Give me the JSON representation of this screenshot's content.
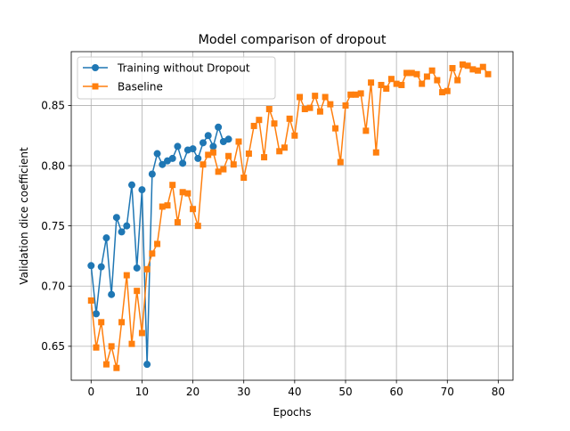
{
  "chart_data": {
    "type": "line",
    "title": "Model comparison of dropout",
    "xlabel": "Epochs",
    "ylabel": "Validation dice coefficient",
    "xlim": [
      -3.9,
      82.9
    ],
    "ylim": [
      0.6218,
      0.8947
    ],
    "xticks": [
      0,
      10,
      20,
      30,
      40,
      50,
      60,
      70,
      80
    ],
    "xtick_labels": [
      "0",
      "10",
      "20",
      "30",
      "40",
      "50",
      "60",
      "70",
      "80"
    ],
    "yticks": [
      0.65,
      0.7,
      0.75,
      0.8,
      0.85
    ],
    "ytick_labels": [
      "0.65",
      "0.70",
      "0.75",
      "0.80",
      "0.85"
    ],
    "grid": true,
    "legend_position": "upper-left",
    "series": [
      {
        "name": "Training without Dropout",
        "color": "#1f77b4",
        "marker": "circle",
        "x": [
          0,
          1,
          2,
          3,
          4,
          5,
          6,
          7,
          8,
          9,
          10,
          11,
          12,
          13,
          14,
          15,
          16,
          17,
          18,
          19,
          20,
          21,
          22,
          23,
          24,
          25,
          26,
          27
        ],
        "y": [
          0.717,
          0.677,
          0.716,
          0.74,
          0.693,
          0.757,
          0.745,
          0.75,
          0.784,
          0.715,
          0.78,
          0.635,
          0.793,
          0.81,
          0.801,
          0.804,
          0.806,
          0.816,
          0.802,
          0.813,
          0.814,
          0.806,
          0.819,
          0.825,
          0.816,
          0.832,
          0.82,
          0.822
        ]
      },
      {
        "name": "Baseline",
        "color": "#ff7f0e",
        "marker": "square",
        "x": [
          0,
          1,
          2,
          3,
          4,
          5,
          6,
          7,
          8,
          9,
          10,
          11,
          12,
          13,
          14,
          15,
          16,
          17,
          18,
          19,
          20,
          21,
          22,
          23,
          24,
          25,
          26,
          27,
          28,
          29,
          30,
          31,
          32,
          33,
          34,
          35,
          36,
          37,
          38,
          39,
          40,
          41,
          42,
          43,
          44,
          45,
          46,
          47,
          48,
          49,
          50,
          51,
          52,
          53,
          54,
          55,
          56,
          57,
          58,
          59,
          60,
          61,
          62,
          63,
          64,
          65,
          66,
          67,
          68,
          69,
          70,
          71,
          72,
          73,
          74,
          75,
          76,
          77,
          78
        ],
        "y": [
          0.688,
          0.649,
          0.67,
          0.635,
          0.65,
          0.632,
          0.67,
          0.709,
          0.652,
          0.696,
          0.661,
          0.714,
          0.727,
          0.735,
          0.766,
          0.767,
          0.784,
          0.753,
          0.778,
          0.777,
          0.764,
          0.75,
          0.801,
          0.809,
          0.811,
          0.795,
          0.797,
          0.808,
          0.801,
          0.82,
          0.79,
          0.81,
          0.833,
          0.838,
          0.807,
          0.847,
          0.835,
          0.812,
          0.815,
          0.839,
          0.825,
          0.857,
          0.847,
          0.848,
          0.858,
          0.845,
          0.857,
          0.851,
          0.831,
          0.803,
          0.85,
          0.859,
          0.859,
          0.86,
          0.829,
          0.869,
          0.811,
          0.867,
          0.864,
          0.872,
          0.868,
          0.867,
          0.877,
          0.877,
          0.876,
          0.868,
          0.874,
          0.879,
          0.871,
          0.861,
          0.862,
          0.881,
          0.871,
          0.884,
          0.883,
          0.88,
          0.879,
          0.882,
          0.876
        ]
      }
    ]
  }
}
